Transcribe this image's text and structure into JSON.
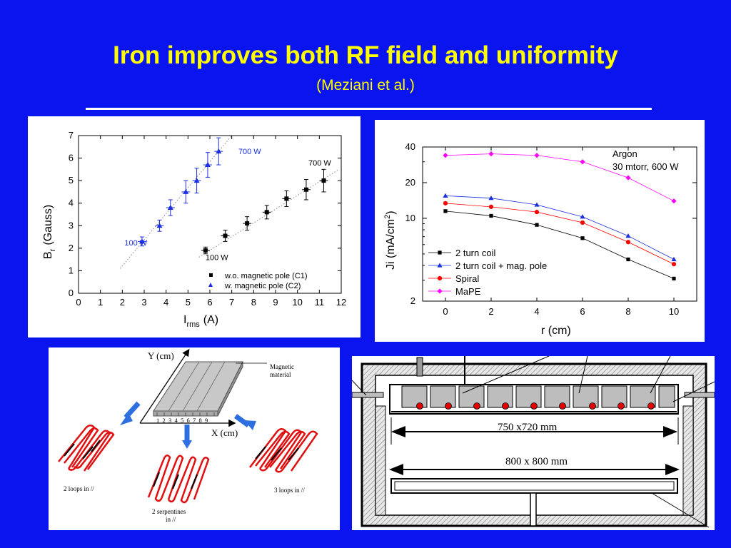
{
  "slide": {
    "title": "Iron improves both RF field and uniformity",
    "subtitle": "(Meziani et al.)"
  },
  "chart_data": [
    {
      "type": "scatter",
      "xlabel_main": "I",
      "xlabel_sub": "rms",
      "xlabel_unit": "(A)",
      "ylabel_main": "B",
      "ylabel_sub": "r",
      "ylabel_unit": "(Gauss)",
      "xlim": [
        0,
        12
      ],
      "ylim": [
        0,
        7
      ],
      "xticks": [
        "0",
        "1",
        "2",
        "3",
        "4",
        "5",
        "6",
        "7",
        "8",
        "9",
        "10",
        "11",
        "12"
      ],
      "yticks": [
        "0",
        "1",
        "2",
        "3",
        "4",
        "5",
        "6",
        "7"
      ],
      "legend": "bottom-right",
      "series": [
        {
          "name": "w.o. magnetic pole (C1)",
          "marker": "square",
          "color": "#000000",
          "x": [
            5.8,
            6.7,
            7.7,
            8.6,
            9.5,
            10.4,
            11.2
          ],
          "y": [
            1.9,
            2.55,
            3.1,
            3.6,
            4.2,
            4.6,
            5.0
          ],
          "yerr": [
            0.15,
            0.25,
            0.3,
            0.3,
            0.35,
            0.45,
            0.5
          ],
          "fit": [
            [
              5.5,
              1.6
            ],
            [
              11.9,
              5.5
            ]
          ],
          "annotations": [
            {
              "text": "100 W",
              "x": 5.8,
              "y": 1.6
            },
            {
              "text": "700 W",
              "x": 10.5,
              "y": 5.8
            }
          ]
        },
        {
          "name": "w. magnetic pole (C2)",
          "marker": "triangle",
          "color": "#1a2fe0",
          "x": [
            2.9,
            3.7,
            4.2,
            4.9,
            5.4,
            5.9,
            6.4
          ],
          "y": [
            2.3,
            3.0,
            3.8,
            4.5,
            5.0,
            5.7,
            6.3
          ],
          "yerr": [
            0.2,
            0.25,
            0.35,
            0.5,
            0.55,
            0.55,
            0.6
          ],
          "fit": [
            [
              1.9,
              1.1
            ],
            [
              7.0,
              7.0
            ]
          ],
          "annotations": [
            {
              "text": "100 W",
              "x": 2.1,
              "y": 2.25
            },
            {
              "text": "700 W",
              "x": 7.3,
              "y": 6.3
            }
          ]
        }
      ]
    },
    {
      "type": "line",
      "xlabel": "r (cm)",
      "ylabel_main": "Ji (mA/cm",
      "ylabel_sup": "2",
      "ylabel_end": ")",
      "xlim": [
        -1,
        11
      ],
      "ylim": [
        2,
        40
      ],
      "yscale": "log",
      "xticks": [
        "0",
        "2",
        "4",
        "6",
        "8",
        "10"
      ],
      "yticks": [
        "2",
        "10",
        "20",
        "40"
      ],
      "note": [
        "Argon",
        "30 mtorr, 600 W"
      ],
      "legend": "bottom-left",
      "series": [
        {
          "name": "2 turn coil",
          "marker": "square",
          "color": "#000000",
          "x": [
            0,
            2,
            4,
            6,
            8,
            10
          ],
          "y": [
            11.5,
            10.5,
            8.8,
            6.8,
            4.5,
            3.1
          ]
        },
        {
          "name": "2 turn coil + mag. pole",
          "marker": "triangle",
          "color": "#1a2fe0",
          "x": [
            0,
            2,
            4,
            6,
            8,
            10
          ],
          "y": [
            15.5,
            14.8,
            13.0,
            10.3,
            7.1,
            4.5
          ]
        },
        {
          "name": "Spiral",
          "marker": "circle",
          "color": "#ff0000",
          "x": [
            0,
            2,
            4,
            6,
            8,
            10
          ],
          "y": [
            13.4,
            12.5,
            11.3,
            9.2,
            6.3,
            4.1
          ]
        },
        {
          "name": "MaPE",
          "marker": "diamond",
          "color": "#ff00ff",
          "x": [
            0,
            2,
            4,
            6,
            8,
            10
          ],
          "y": [
            34.0,
            35.0,
            34.0,
            30.0,
            22.0,
            14.0
          ]
        }
      ]
    }
  ],
  "coil_diagram": {
    "y_axis": "Y (cm)",
    "x_axis": "X (cm)",
    "material_label_1": "Magnetic",
    "material_label_2": "material",
    "numbers": "1  2  3  4  5  6  7  8  9",
    "caption_left": "2 loops in //",
    "caption_middle_1": "2 serpentines",
    "caption_middle_2": "in //",
    "caption_right": "3 loops in //"
  },
  "chamber_diagram": {
    "dim_top": "750 x720 mm",
    "dim_bottom": "800 x 800 mm"
  }
}
